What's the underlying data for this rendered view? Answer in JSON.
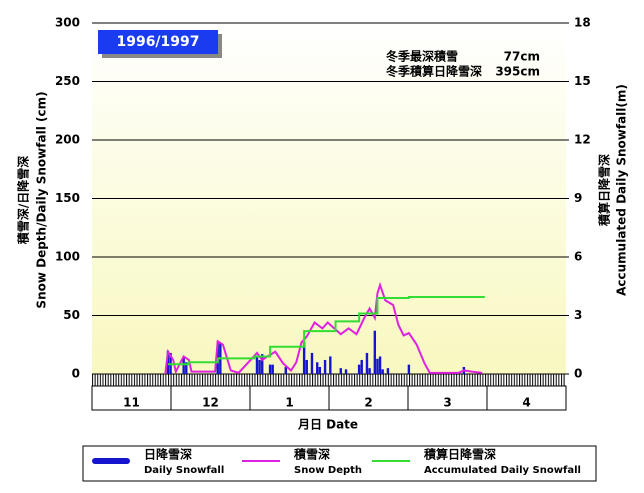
{
  "chart_data": {
    "type": "combo",
    "title": "1996/1997",
    "annotations": [
      {
        "label": "冬季最深積雪",
        "value": "77cm"
      },
      {
        "label": "冬季積算日降雪深",
        "value": "395cm"
      }
    ],
    "y_label": "積雪深/日降雪深",
    "y_label_en": "Snow Depth/Daily Snowfall (cm)",
    "y2_label": "積算日降雪深",
    "y2_label_en": "Accumulated Daily Snowfall(m)",
    "x_label": "月日  Date",
    "categories": [
      "11",
      "12",
      "1",
      "2",
      "3",
      "4"
    ],
    "xlim": [
      0,
      181
    ],
    "ylim": [
      0,
      300
    ],
    "yticks": [
      0,
      50,
      100,
      150,
      200,
      250,
      300
    ],
    "y2lim": [
      0,
      18
    ],
    "y2ticks": [
      0,
      3,
      6,
      9,
      12,
      15,
      18
    ],
    "grid": true,
    "series": [
      {
        "name": "日降雪深",
        "name_en": "Daily Snowfall",
        "type": "bar",
        "color": "#1515d0",
        "x": [
          29,
          30,
          35,
          36,
          48,
          49,
          63,
          64,
          65,
          68,
          69,
          74,
          81,
          82,
          84,
          86,
          87,
          89,
          91,
          95,
          97,
          102,
          103,
          105,
          106,
          108,
          109,
          110,
          111,
          113,
          121,
          142
        ],
        "values": [
          20,
          18,
          14,
          10,
          27,
          27,
          15,
          12,
          17,
          8,
          8,
          6,
          27,
          12,
          18,
          10,
          6,
          12,
          15,
          5,
          4,
          8,
          12,
          18,
          5,
          37,
          13,
          15,
          4,
          5,
          8,
          6
        ]
      },
      {
        "name": "積雪深",
        "name_en": "Snow Depth",
        "type": "line",
        "color": "#e020e0",
        "x": [
          28,
          29,
          31,
          32,
          35,
          37,
          38,
          47,
          48,
          50,
          53,
          56,
          63,
          65,
          67,
          70,
          73,
          76,
          78,
          80,
          82,
          85,
          88,
          90,
          93,
          95,
          98,
          101,
          104,
          106,
          108,
          109,
          110,
          112,
          115,
          117,
          119,
          121,
          124,
          127,
          129,
          140,
          142,
          145,
          149
        ],
        "values": [
          0,
          19,
          12,
          2,
          15,
          12,
          2,
          2,
          28,
          25,
          3,
          1,
          18,
          12,
          15,
          19,
          9,
          3,
          10,
          27,
          32,
          44,
          39,
          44,
          38,
          34,
          39,
          34,
          48,
          56,
          48,
          69,
          76,
          63,
          59,
          42,
          33,
          35,
          25,
          9,
          1,
          1,
          3,
          2,
          1
        ]
      },
      {
        "name": "積算日降雪深",
        "name_en": "Accumulated Daily Snowfall",
        "type": "line",
        "axis": "y2",
        "color": "#33dd33",
        "x": [
          29,
          37,
          37,
          48,
          48,
          62,
          62,
          68,
          68,
          81,
          81,
          93,
          93,
          102,
          102,
          109,
          109,
          121,
          121,
          150
        ],
        "values": [
          0.5,
          0.5,
          0.6,
          0.6,
          0.8,
          0.8,
          0.9,
          0.9,
          1.4,
          1.4,
          2.2,
          2.2,
          2.7,
          2.7,
          3.1,
          3.1,
          3.9,
          3.9,
          3.95,
          3.95
        ]
      }
    ]
  }
}
